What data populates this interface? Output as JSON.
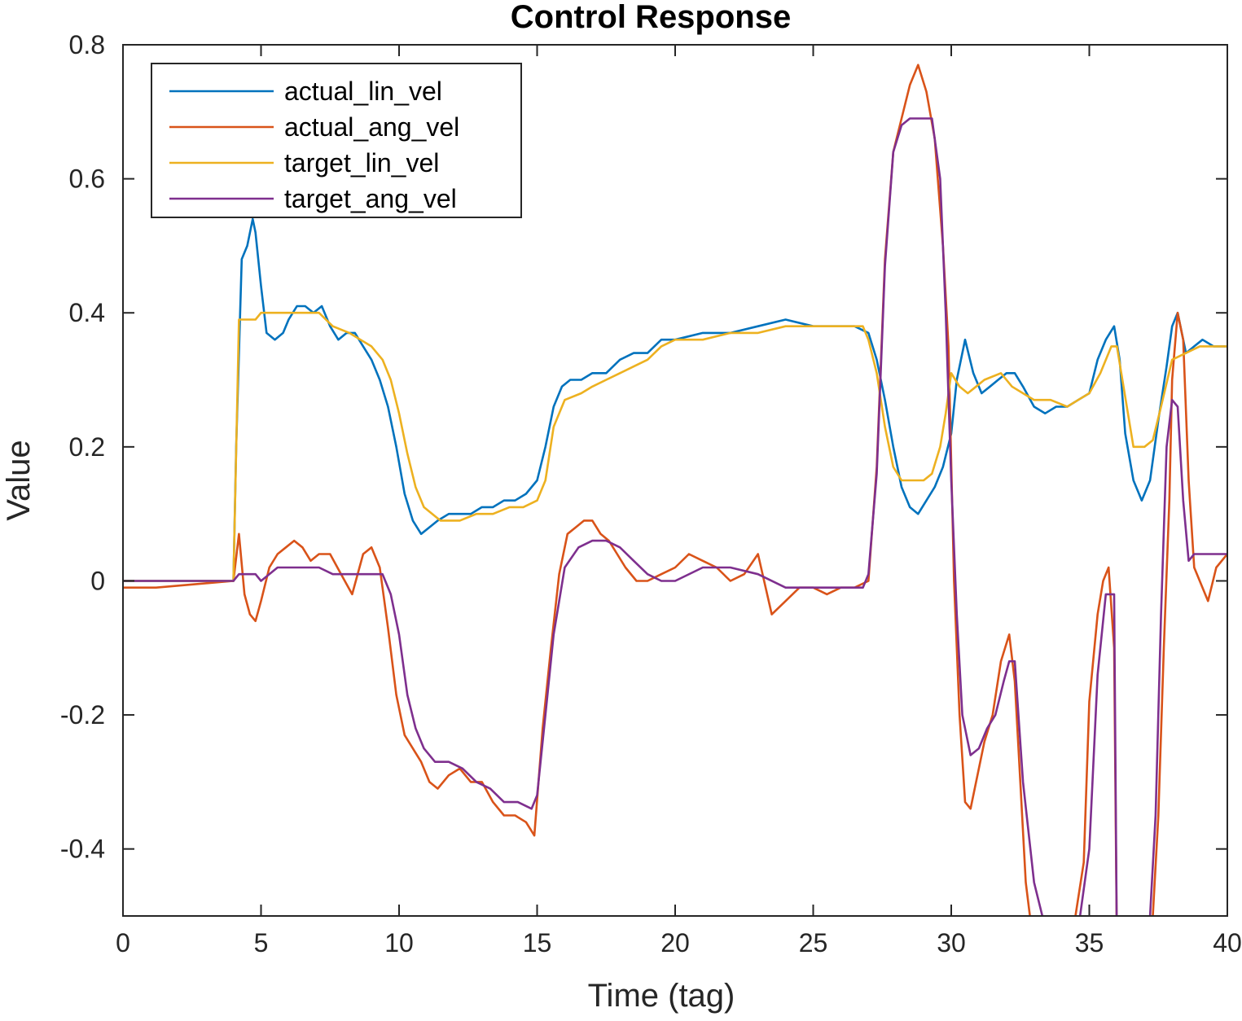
{
  "chart_data": {
    "type": "line",
    "title": "Control Response",
    "xlabel": "Time (tag)",
    "ylabel": "Value",
    "xlim": [
      0,
      40
    ],
    "ylim": [
      -0.5,
      0.8
    ],
    "xticks": [
      0,
      5,
      10,
      15,
      20,
      25,
      30,
      35,
      40
    ],
    "xtick_labels": [
      "0",
      "5",
      "10",
      "15",
      "20",
      "25",
      "30",
      "35",
      "40"
    ],
    "yticks": [
      -0.4,
      -0.2,
      0,
      0.2,
      0.4,
      0.6,
      0.8
    ],
    "ytick_labels": [
      "-0.4",
      "-0.2",
      "0",
      "0.2",
      "0.4",
      "0.6",
      "0.8"
    ],
    "grid": false,
    "legend_position": "top-left",
    "series": [
      {
        "name": "actual_lin_vel",
        "color": "#0072BD",
        "x": [
          0,
          4.0,
          4.1,
          4.3,
          4.5,
          4.7,
          4.8,
          5.0,
          5.2,
          5.5,
          5.8,
          6.0,
          6.3,
          6.6,
          6.9,
          7.2,
          7.5,
          7.8,
          8.1,
          8.4,
          8.7,
          9.0,
          9.3,
          9.6,
          9.9,
          10.2,
          10.5,
          10.8,
          11.1,
          11.4,
          11.8,
          12.2,
          12.6,
          13.0,
          13.4,
          13.8,
          14.2,
          14.6,
          15.0,
          15.3,
          15.6,
          15.9,
          16.2,
          16.6,
          17.0,
          17.5,
          18.0,
          18.5,
          19.0,
          19.5,
          20.0,
          21.0,
          22.0,
          23.0,
          24.0,
          25.0,
          26.0,
          26.5,
          27.0,
          27.3,
          27.6,
          27.9,
          28.2,
          28.5,
          28.8,
          29.1,
          29.4,
          29.7,
          30.0,
          30.2,
          30.5,
          30.8,
          31.1,
          31.4,
          31.7,
          32.0,
          32.3,
          32.6,
          33.0,
          33.4,
          33.8,
          34.2,
          34.6,
          35.0,
          35.3,
          35.6,
          35.9,
          36.1,
          36.3,
          36.6,
          36.9,
          37.2,
          37.5,
          37.8,
          38.0,
          38.2,
          38.5,
          38.8,
          39.1,
          39.5,
          40.0
        ],
        "y": [
          0,
          0,
          0.2,
          0.48,
          0.5,
          0.54,
          0.52,
          0.44,
          0.37,
          0.36,
          0.37,
          0.39,
          0.41,
          0.41,
          0.4,
          0.41,
          0.38,
          0.36,
          0.37,
          0.37,
          0.35,
          0.33,
          0.3,
          0.26,
          0.2,
          0.13,
          0.09,
          0.07,
          0.08,
          0.09,
          0.1,
          0.1,
          0.1,
          0.11,
          0.11,
          0.12,
          0.12,
          0.13,
          0.15,
          0.2,
          0.26,
          0.29,
          0.3,
          0.3,
          0.31,
          0.31,
          0.33,
          0.34,
          0.34,
          0.36,
          0.36,
          0.37,
          0.37,
          0.38,
          0.39,
          0.38,
          0.38,
          0.38,
          0.37,
          0.33,
          0.27,
          0.2,
          0.14,
          0.11,
          0.1,
          0.12,
          0.14,
          0.17,
          0.22,
          0.3,
          0.36,
          0.31,
          0.28,
          0.29,
          0.3,
          0.31,
          0.31,
          0.29,
          0.26,
          0.25,
          0.26,
          0.26,
          0.27,
          0.28,
          0.33,
          0.36,
          0.38,
          0.33,
          0.22,
          0.15,
          0.12,
          0.15,
          0.24,
          0.32,
          0.38,
          0.4,
          0.34,
          0.35,
          0.36,
          0.35,
          0.35
        ]
      },
      {
        "name": "actual_ang_vel",
        "color": "#D95319",
        "x": [
          0,
          1.2,
          4.0,
          4.2,
          4.4,
          4.6,
          4.8,
          5.0,
          5.3,
          5.6,
          5.9,
          6.2,
          6.5,
          6.8,
          7.1,
          7.5,
          7.9,
          8.3,
          8.7,
          9.0,
          9.3,
          9.6,
          9.9,
          10.2,
          10.5,
          10.8,
          11.1,
          11.4,
          11.8,
          12.2,
          12.6,
          13.0,
          13.4,
          13.8,
          14.2,
          14.6,
          14.9,
          15.2,
          15.5,
          15.8,
          16.1,
          16.4,
          16.7,
          17.0,
          17.3,
          17.6,
          17.9,
          18.2,
          18.6,
          19.0,
          19.5,
          20.0,
          20.5,
          21.0,
          21.5,
          22.0,
          22.5,
          23.0,
          23.5,
          24.0,
          24.5,
          25.0,
          25.5,
          26.0,
          26.5,
          27.0,
          27.3,
          27.6,
          27.9,
          28.2,
          28.5,
          28.8,
          29.1,
          29.4,
          29.7,
          29.9,
          30.1,
          30.3,
          30.5,
          30.7,
          30.9,
          31.2,
          31.5,
          31.8,
          32.1,
          32.3,
          32.5,
          32.7,
          33.0,
          33.5,
          34.0,
          34.5,
          34.8,
          35.0,
          35.3,
          35.5,
          35.7,
          35.9,
          36.0,
          36.2,
          36.5,
          37.0,
          37.3,
          37.5,
          37.7,
          37.9,
          38.0,
          38.2,
          38.4,
          38.6,
          38.8,
          39.0,
          39.3,
          39.6,
          40.0
        ],
        "y": [
          -0.01,
          -0.01,
          0,
          0.07,
          -0.02,
          -0.05,
          -0.06,
          -0.03,
          0.02,
          0.04,
          0.05,
          0.06,
          0.05,
          0.03,
          0.04,
          0.04,
          0.01,
          -0.02,
          0.04,
          0.05,
          0.02,
          -0.07,
          -0.17,
          -0.23,
          -0.25,
          -0.27,
          -0.3,
          -0.31,
          -0.29,
          -0.28,
          -0.3,
          -0.3,
          -0.33,
          -0.35,
          -0.35,
          -0.36,
          -0.38,
          -0.22,
          -0.1,
          0.01,
          0.07,
          0.08,
          0.09,
          0.09,
          0.07,
          0.06,
          0.04,
          0.02,
          0.0,
          0.0,
          0.01,
          0.02,
          0.04,
          0.03,
          0.02,
          0.0,
          0.01,
          0.04,
          -0.05,
          -0.03,
          -0.01,
          -0.01,
          -0.02,
          -0.01,
          -0.01,
          0.0,
          0.17,
          0.48,
          0.64,
          0.69,
          0.74,
          0.77,
          0.73,
          0.66,
          0.5,
          0.35,
          0.0,
          -0.2,
          -0.33,
          -0.34,
          -0.3,
          -0.24,
          -0.2,
          -0.12,
          -0.08,
          -0.15,
          -0.3,
          -0.45,
          -0.55,
          -0.54,
          -0.52,
          -0.5,
          -0.42,
          -0.18,
          -0.05,
          0.0,
          0.02,
          -0.1,
          -0.55,
          -0.55,
          -0.55,
          -0.55,
          -0.5,
          -0.35,
          -0.1,
          0.12,
          0.3,
          0.4,
          0.36,
          0.15,
          0.02,
          0.0,
          -0.03,
          0.02,
          0.04
        ]
      },
      {
        "name": "target_lin_vel",
        "color": "#EDB120",
        "x": [
          0,
          4.0,
          4.2,
          4.8,
          5.0,
          5.6,
          7.1,
          7.6,
          8.2,
          8.6,
          9.0,
          9.4,
          9.7,
          10.0,
          10.3,
          10.6,
          10.9,
          11.5,
          12.2,
          12.8,
          13.4,
          14.0,
          14.5,
          15.0,
          15.3,
          15.6,
          16.0,
          16.6,
          17.0,
          17.5,
          18.0,
          18.5,
          19.0,
          19.5,
          20.0,
          21.0,
          22.0,
          23.0,
          24.0,
          25.0,
          26.0,
          26.8,
          27.0,
          27.3,
          27.6,
          27.9,
          28.2,
          28.5,
          29.0,
          29.3,
          29.6,
          29.8,
          30.0,
          30.3,
          30.6,
          30.9,
          31.2,
          31.8,
          32.2,
          32.6,
          33.0,
          33.6,
          34.2,
          34.6,
          35.0,
          35.4,
          35.8,
          36.0,
          36.6,
          37.0,
          37.3,
          37.6,
          38.0,
          38.5,
          39.0,
          40.0
        ],
        "y": [
          0,
          0,
          0.39,
          0.39,
          0.4,
          0.4,
          0.4,
          0.38,
          0.37,
          0.36,
          0.35,
          0.33,
          0.3,
          0.25,
          0.19,
          0.14,
          0.11,
          0.09,
          0.09,
          0.1,
          0.1,
          0.11,
          0.11,
          0.12,
          0.15,
          0.23,
          0.27,
          0.28,
          0.29,
          0.3,
          0.31,
          0.32,
          0.33,
          0.35,
          0.36,
          0.36,
          0.37,
          0.37,
          0.38,
          0.38,
          0.38,
          0.38,
          0.36,
          0.31,
          0.23,
          0.17,
          0.15,
          0.15,
          0.15,
          0.16,
          0.2,
          0.25,
          0.31,
          0.29,
          0.28,
          0.29,
          0.3,
          0.31,
          0.29,
          0.28,
          0.27,
          0.27,
          0.26,
          0.27,
          0.28,
          0.31,
          0.35,
          0.35,
          0.2,
          0.2,
          0.21,
          0.26,
          0.33,
          0.34,
          0.35,
          0.35
        ]
      },
      {
        "name": "target_ang_vel",
        "color": "#7E2F8E",
        "x": [
          0,
          4.0,
          4.2,
          4.8,
          5.0,
          5.6,
          7.1,
          7.6,
          8.2,
          8.6,
          9.0,
          9.4,
          9.7,
          10.0,
          10.3,
          10.6,
          10.9,
          11.3,
          11.8,
          12.3,
          12.8,
          13.3,
          13.8,
          14.3,
          14.8,
          15.0,
          15.3,
          15.6,
          16.0,
          16.5,
          17.0,
          17.5,
          18.0,
          18.5,
          19.0,
          19.5,
          20.0,
          21.0,
          22.0,
          23.0,
          24.0,
          25.0,
          26.0,
          26.8,
          27.0,
          27.3,
          27.6,
          27.9,
          28.2,
          28.5,
          29.0,
          29.3,
          29.6,
          29.8,
          30.0,
          30.2,
          30.4,
          30.7,
          31.0,
          31.3,
          31.6,
          31.9,
          32.1,
          32.3,
          32.6,
          33.0,
          33.6,
          34.2,
          34.6,
          35.0,
          35.3,
          35.6,
          35.9,
          36.0,
          36.2,
          36.6,
          37.0,
          37.2,
          37.4,
          37.6,
          37.8,
          38.0,
          38.2,
          38.4,
          38.6,
          38.8,
          39.0,
          39.3,
          40.0
        ],
        "y": [
          0,
          0,
          0.01,
          0.01,
          0.0,
          0.02,
          0.02,
          0.01,
          0.01,
          0.01,
          0.01,
          0.01,
          -0.02,
          -0.08,
          -0.17,
          -0.22,
          -0.25,
          -0.27,
          -0.27,
          -0.28,
          -0.3,
          -0.31,
          -0.33,
          -0.33,
          -0.34,
          -0.32,
          -0.2,
          -0.08,
          0.02,
          0.05,
          0.06,
          0.06,
          0.05,
          0.03,
          0.01,
          0.0,
          0.0,
          0.02,
          0.02,
          0.01,
          -0.01,
          -0.01,
          -0.01,
          -0.01,
          0.01,
          0.16,
          0.47,
          0.64,
          0.68,
          0.69,
          0.69,
          0.69,
          0.6,
          0.4,
          0.15,
          -0.05,
          -0.2,
          -0.26,
          -0.25,
          -0.22,
          -0.2,
          -0.15,
          -0.12,
          -0.12,
          -0.3,
          -0.45,
          -0.55,
          -0.55,
          -0.52,
          -0.4,
          -0.14,
          -0.02,
          -0.02,
          -0.55,
          -0.55,
          -0.55,
          -0.55,
          -0.5,
          -0.35,
          -0.05,
          0.2,
          0.27,
          0.26,
          0.12,
          0.03,
          0.04,
          0.04,
          0.04,
          0.04
        ]
      }
    ]
  }
}
